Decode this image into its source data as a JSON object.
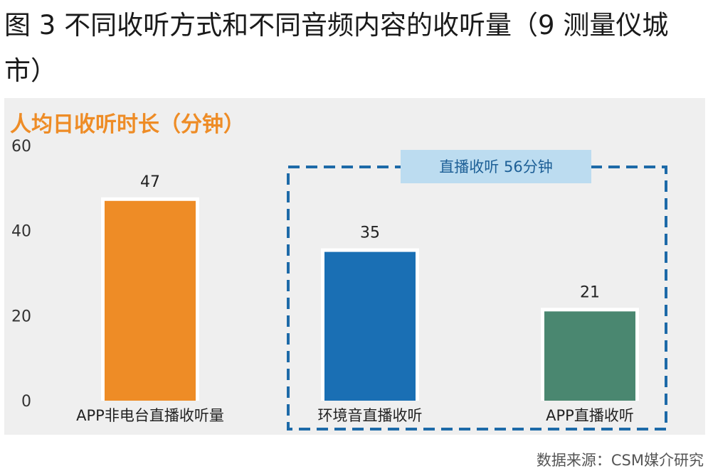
{
  "figure_title": "图 3 不同收听方式和不同音频内容的收听量（9 测量仪城市）",
  "source": "数据来源：CSM媒介研究",
  "colors": {
    "orange": "#ee8c26",
    "blue": "#1a6fb4",
    "green": "#4a8770",
    "dash": "#1d6aa8",
    "callout_bg": "#bcdcf0",
    "panel_bg": "#efefef"
  },
  "chart_data": {
    "type": "bar",
    "title": "人均日收听时长（分钟）",
    "categories": [
      "APP非电台直播收听量",
      "环境音直播收听",
      "APP直播收听"
    ],
    "values": [
      47,
      35,
      21
    ],
    "data_labels": [
      "47",
      "35",
      "21"
    ],
    "bar_colors": [
      "#ee8c26",
      "#1a6fb4",
      "#4a8770"
    ],
    "ylim": [
      0,
      60
    ],
    "yticks": [
      0,
      20,
      40,
      60
    ],
    "ytick_labels": [
      "0",
      "20",
      "40",
      "60"
    ],
    "grid": false,
    "annotation": {
      "text": "直播收听 56分钟",
      "group": [
        "环境音直播收听",
        "APP直播收听"
      ]
    }
  }
}
